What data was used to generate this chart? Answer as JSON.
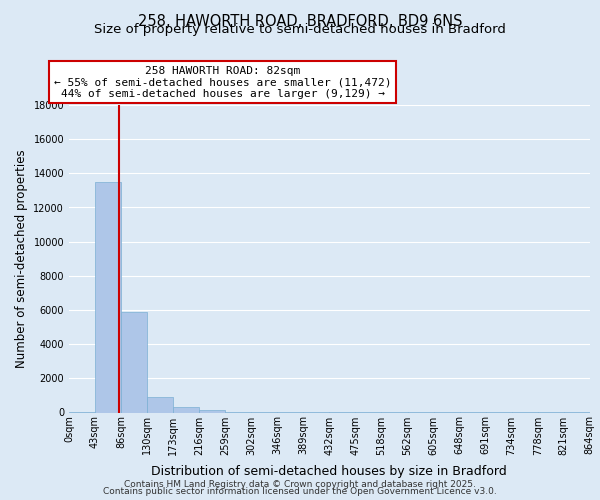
{
  "title_line1": "258, HAWORTH ROAD, BRADFORD, BD9 6NS",
  "title_line2": "Size of property relative to semi-detached houses in Bradford",
  "xlabel": "Distribution of semi-detached houses by size in Bradford",
  "ylabel": "Number of semi-detached properties",
  "bar_values": [
    50,
    13500,
    5900,
    900,
    300,
    150,
    50,
    30,
    20,
    15,
    10,
    8,
    5,
    4,
    3,
    2,
    2,
    1,
    1,
    1
  ],
  "bar_color": "#aec6e8",
  "bar_edge_color": "#7bafd4",
  "x_labels": [
    "0sqm",
    "43sqm",
    "86sqm",
    "130sqm",
    "173sqm",
    "216sqm",
    "259sqm",
    "302sqm",
    "346sqm",
    "389sqm",
    "432sqm",
    "475sqm",
    "518sqm",
    "562sqm",
    "605sqm",
    "648sqm",
    "691sqm",
    "734sqm",
    "778sqm",
    "821sqm",
    "864sqm"
  ],
  "ylim": [
    0,
    18000
  ],
  "yticks": [
    0,
    2000,
    4000,
    6000,
    8000,
    10000,
    12000,
    14000,
    16000,
    18000
  ],
  "property_label": "258 HAWORTH ROAD: 82sqm",
  "annotation_line1": "← 55% of semi-detached houses are smaller (11,472)",
  "annotation_line2": "44% of semi-detached houses are larger (9,129) →",
  "annotation_box_color": "#ffffff",
  "annotation_box_edge": "#cc0000",
  "vline_color": "#cc0000",
  "background_color": "#dce9f5",
  "plot_bg_color": "#dce9f5",
  "footer_line1": "Contains HM Land Registry data © Crown copyright and database right 2025.",
  "footer_line2": "Contains public sector information licensed under the Open Government Licence v3.0.",
  "grid_color": "#ffffff",
  "title_fontsize": 10.5,
  "subtitle_fontsize": 9.5,
  "tick_fontsize": 7,
  "ylabel_fontsize": 8.5,
  "xlabel_fontsize": 9,
  "annotation_fontsize": 8,
  "footer_fontsize": 6.5
}
